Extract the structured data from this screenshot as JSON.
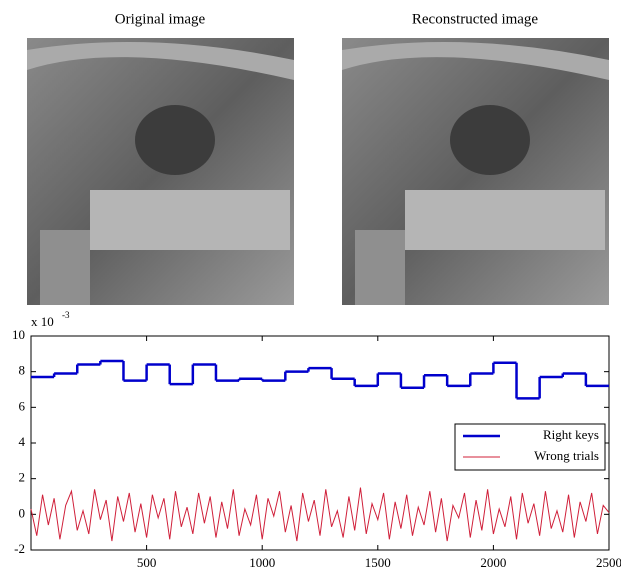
{
  "panels": [
    {
      "title": "Original image"
    },
    {
      "title": "Reconstructed image"
    }
  ],
  "chart_data": {
    "type": "line",
    "y_multiplier": "x 10",
    "y_exponent": "-3",
    "xlim": [
      0,
      2500
    ],
    "ylim": [
      -2,
      10
    ],
    "xticks": [
      500,
      1000,
      1500,
      2000,
      2500
    ],
    "yticks": [
      -2,
      0,
      2,
      4,
      6,
      8,
      10
    ],
    "legend": "lower right",
    "series": [
      {
        "name": "Right keys",
        "color": "#0000cc",
        "step": true,
        "bins": [
          0,
          100,
          200,
          300,
          400,
          500,
          600,
          700,
          800,
          900,
          1000,
          1100,
          1200,
          1300,
          1400,
          1500,
          1600,
          1700,
          1800,
          1900,
          2000,
          2100,
          2200,
          2300,
          2400,
          2500
        ],
        "values": [
          7.7,
          7.9,
          8.4,
          8.6,
          7.5,
          8.4,
          7.3,
          8.4,
          7.5,
          7.6,
          7.5,
          8.0,
          8.2,
          7.6,
          7.2,
          7.9,
          7.1,
          7.8,
          7.2,
          7.9,
          8.5,
          6.5,
          7.7,
          7.9,
          7.2
        ]
      },
      {
        "name": "Wrong trials",
        "color": "#d0203a",
        "x": [
          0,
          25,
          50,
          75,
          100,
          125,
          150,
          175,
          200,
          225,
          250,
          275,
          300,
          325,
          350,
          375,
          400,
          425,
          450,
          475,
          500,
          525,
          550,
          575,
          600,
          625,
          650,
          675,
          700,
          725,
          750,
          775,
          800,
          825,
          850,
          875,
          900,
          925,
          950,
          975,
          1000,
          1025,
          1050,
          1075,
          1100,
          1125,
          1150,
          1175,
          1200,
          1225,
          1250,
          1275,
          1300,
          1325,
          1350,
          1375,
          1400,
          1425,
          1450,
          1475,
          1500,
          1525,
          1550,
          1575,
          1600,
          1625,
          1650,
          1675,
          1700,
          1725,
          1750,
          1775,
          1800,
          1825,
          1850,
          1875,
          1900,
          1925,
          1950,
          1975,
          2000,
          2025,
          2050,
          2075,
          2100,
          2125,
          2150,
          2175,
          2200,
          2225,
          2250,
          2275,
          2300,
          2325,
          2350,
          2375,
          2400,
          2425,
          2450,
          2475,
          2500
        ],
        "values": [
          0.3,
          -1.2,
          1.1,
          -0.6,
          0.9,
          -1.4,
          0.5,
          1.3,
          -0.9,
          0.2,
          -1.1,
          1.4,
          -0.3,
          0.8,
          -1.5,
          1.0,
          -0.4,
          1.2,
          -1.0,
          0.6,
          -1.3,
          1.1,
          -0.2,
          0.9,
          -1.4,
          1.3,
          -0.7,
          0.4,
          -1.1,
          1.2,
          -0.5,
          1.0,
          -1.3,
          0.7,
          -0.8,
          1.4,
          -1.2,
          0.3,
          -0.6,
          1.1,
          -1.4,
          0.9,
          -0.1,
          1.3,
          -1.0,
          0.5,
          -1.5,
          1.2,
          -0.4,
          0.8,
          -1.2,
          1.4,
          -0.7,
          0.2,
          -1.3,
          1.0,
          -0.9,
          1.5,
          -1.1,
          0.6,
          -0.3,
          1.2,
          -1.4,
          0.7,
          -0.8,
          1.1,
          -1.2,
          0.4,
          -0.6,
          1.3,
          -1.0,
          0.9,
          -1.5,
          0.5,
          -0.2,
          1.2,
          -1.3,
          0.8,
          -0.9,
          1.4,
          -1.1,
          0.3,
          -0.7,
          1.0,
          -1.4,
          1.2,
          -0.5,
          0.6,
          -1.2,
          1.3,
          -0.8,
          0.2,
          -1.0,
          1.1,
          -1.3,
          0.7,
          -0.4,
          1.2,
          -1.1,
          0.5,
          0.1
        ]
      }
    ]
  }
}
